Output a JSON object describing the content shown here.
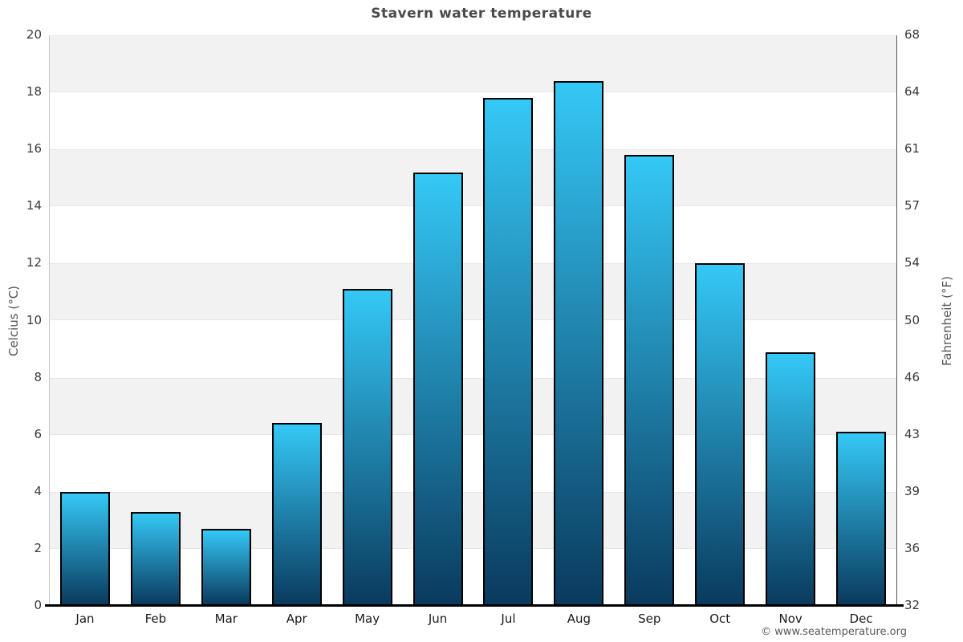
{
  "title": "Stavern water temperature",
  "copyright": "© www.seatemperature.org",
  "colors": {
    "bar_gradient_top": "#35c8f6",
    "bar_gradient_bottom": "#0a3a5e",
    "bar_border": "#000000",
    "band_gray": "#f2f2f2",
    "title_text": "#4a4a4a",
    "axis_line": "#000000"
  },
  "chart_data": {
    "type": "bar",
    "title": "Stavern water temperature",
    "categories": [
      "Jan",
      "Feb",
      "Mar",
      "Apr",
      "May",
      "Jun",
      "Jul",
      "Aug",
      "Sep",
      "Oct",
      "Nov",
      "Dec"
    ],
    "values": [
      4.0,
      3.3,
      2.7,
      6.4,
      11.1,
      15.2,
      17.8,
      18.4,
      15.8,
      12.0,
      8.9,
      6.1
    ],
    "ylabel_left": "Celcius (°C)",
    "ylabel_right": "Fahrenheit (°F)",
    "xlabel": "",
    "ylim": [
      0,
      20
    ],
    "left_axis_ticks": [
      0,
      2,
      4,
      6,
      8,
      10,
      12,
      14,
      16,
      18,
      20
    ],
    "right_axis_tick_labels": [
      "32",
      "36",
      "39",
      "43",
      "46",
      "50",
      "54",
      "57",
      "61",
      "64",
      "68"
    ],
    "grid": "alternating horizontal bands every 2°C, gray on 2-4,6-8,10-12,14-16,18-20",
    "legend": "none"
  }
}
